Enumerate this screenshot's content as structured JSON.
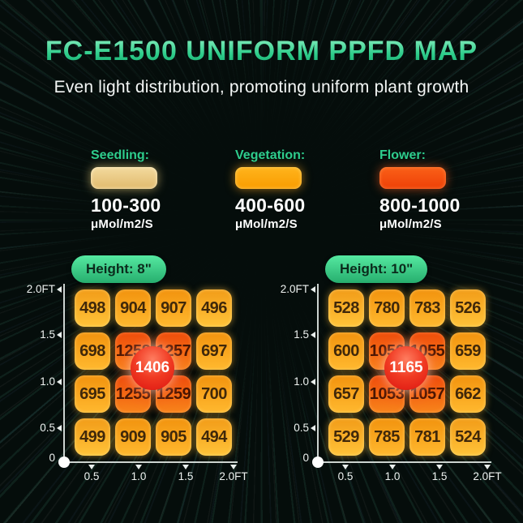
{
  "header": {
    "title": "FC-E1500 UNIFORM PPFD MAP",
    "subtitle": "Even light distribution, promoting uniform plant growth"
  },
  "legend": {
    "items": [
      {
        "label": "Seedling:",
        "range": "100-300",
        "unit": "μMol/m2/S",
        "color": "#e8c77e"
      },
      {
        "label": "Vegetation:",
        "range": "400-600",
        "unit": "μMol/m2/S",
        "color": "#ffa304"
      },
      {
        "label": "Flower:",
        "range": "800-1000",
        "unit": "μMol/m2/S",
        "color": "#f04a0e"
      }
    ]
  },
  "axes": {
    "y_ticks": [
      "2.0FT",
      "1.5",
      "1.0",
      "0.5",
      "0"
    ],
    "x_ticks": [
      "0.5",
      "1.0",
      "1.5",
      "2.0FT"
    ]
  },
  "colors": {
    "accent_green": "#2ecd8d",
    "title_green": "#2fd68e",
    "peak_badge_red": "#e81d13",
    "cell_warm": "#ffb92f",
    "cell_hot": "#f25a10",
    "background": "#050d0b"
  },
  "chart_data": [
    {
      "type": "heatmap",
      "title": "Height: 8\"",
      "x": [
        0.5,
        1.0,
        1.5,
        2.0
      ],
      "y": [
        2.0,
        1.5,
        1.0,
        0.5
      ],
      "xlabel": "FT",
      "ylabel": "FT",
      "units": "μMol/m2/S",
      "values": [
        [
          498,
          904,
          907,
          496
        ],
        [
          698,
          1258,
          1257,
          697
        ],
        [
          695,
          1255,
          1259,
          700
        ],
        [
          499,
          909,
          905,
          494
        ]
      ],
      "center_peak": 1406
    },
    {
      "type": "heatmap",
      "title": "Height: 10\"",
      "x": [
        0.5,
        1.0,
        1.5,
        2.0
      ],
      "y": [
        2.0,
        1.5,
        1.0,
        0.5
      ],
      "xlabel": "FT",
      "ylabel": "FT",
      "units": "μMol/m2/S",
      "values": [
        [
          528,
          780,
          783,
          526
        ],
        [
          600,
          1056,
          1055,
          659
        ],
        [
          657,
          1053,
          1057,
          662
        ],
        [
          529,
          785,
          781,
          524
        ]
      ],
      "center_peak": 1165
    }
  ]
}
